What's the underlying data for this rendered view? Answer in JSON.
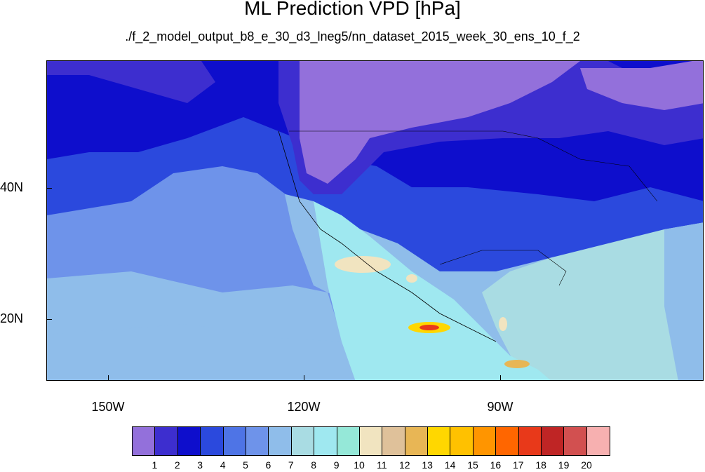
{
  "title": "ML Prediction VPD [hPa]",
  "subtitle": "./f_2_model_output_b8_e_30_d3_lneg5/nn_dataset_2015_week_30_ens_10_f_2",
  "axes": {
    "y_labels": [
      "40N",
      "20N"
    ],
    "x_labels": [
      "150W",
      "120W",
      "90W"
    ]
  },
  "colorbar": {
    "labels": [
      "1",
      "2",
      "3",
      "4",
      "5",
      "6",
      "7",
      "8",
      "9",
      "10",
      "11",
      "12",
      "13",
      "14",
      "15",
      "16",
      "17",
      "18",
      "19",
      "20"
    ],
    "colors": [
      "#9370DB",
      "#3D2ECF",
      "#0E0ECC",
      "#2B49DD",
      "#4E74E6",
      "#6E93EA",
      "#8FBDEA",
      "#A9DCE3",
      "#9FE8F0",
      "#95E8D8",
      "#F1E4C0",
      "#DFC19A",
      "#E8B655",
      "#FFD700",
      "#FFC100",
      "#FF9500",
      "#FF6600",
      "#E8391A",
      "#BF2525",
      "#D25050",
      "#F7B0B0"
    ]
  }
}
